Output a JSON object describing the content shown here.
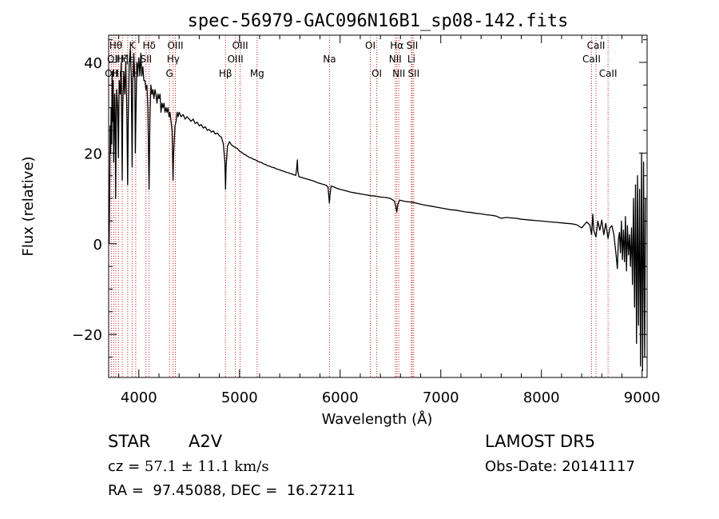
{
  "info": {
    "class_label": "STAR",
    "subclass_label": "A2V",
    "survey": "LAMOST DR5",
    "cz_prefix": "cz = ",
    "cz_value": "57.1 ± 11.1 km/s",
    "obs_date": "Obs-Date: 20141117",
    "coords": "RA =  97.45088, DEC =  16.27211"
  },
  "chart_data": {
    "type": "line",
    "title": "spec-56979-GAC096N16B1_sp08-142.fits",
    "xlabel": "Wavelength (Å)",
    "ylabel": "Flux (relative)",
    "xlim": [
      3700,
      9050
    ],
    "ylim": [
      -29.5,
      46
    ],
    "xticks": [
      4000,
      5000,
      6000,
      7000,
      8000,
      9000
    ],
    "yticks": [
      -20,
      0,
      20,
      40
    ],
    "line_color": "#000000",
    "marker_color": "#cc2222",
    "series": [
      {
        "values": [
          [
            3705,
            0
          ],
          [
            3710,
            12
          ],
          [
            3715,
            26
          ],
          [
            3720,
            20
          ],
          [
            3725,
            30
          ],
          [
            3730,
            22
          ],
          [
            3735,
            38
          ],
          [
            3740,
            27
          ],
          [
            3745,
            36
          ],
          [
            3750,
            18
          ],
          [
            3755,
            24
          ],
          [
            3760,
            33
          ],
          [
            3765,
            28
          ],
          [
            3770,
            10
          ],
          [
            3775,
            25
          ],
          [
            3780,
            34
          ],
          [
            3790,
            30
          ],
          [
            3797,
            19
          ],
          [
            3805,
            36
          ],
          [
            3815,
            33
          ],
          [
            3825,
            40
          ],
          [
            3835,
            14
          ],
          [
            3840,
            30
          ],
          [
            3850,
            38
          ],
          [
            3860,
            33
          ],
          [
            3870,
            40
          ],
          [
            3880,
            30
          ],
          [
            3889,
            13
          ],
          [
            3895,
            28
          ],
          [
            3905,
            40
          ],
          [
            3915,
            43
          ],
          [
            3925,
            37
          ],
          [
            3933,
            17
          ],
          [
            3940,
            36
          ],
          [
            3950,
            42
          ],
          [
            3960,
            36
          ],
          [
            3965,
            20
          ],
          [
            3972,
            30
          ],
          [
            3980,
            40
          ],
          [
            3990,
            38
          ],
          [
            4000,
            41
          ],
          [
            4010,
            37
          ],
          [
            4020,
            42
          ],
          [
            4030,
            37
          ],
          [
            4040,
            39
          ],
          [
            4050,
            36
          ],
          [
            4060,
            36
          ],
          [
            4070,
            34
          ],
          [
            4080,
            35
          ],
          [
            4090,
            30
          ],
          [
            4102,
            12
          ],
          [
            4110,
            28
          ],
          [
            4120,
            35
          ],
          [
            4130,
            33
          ],
          [
            4140,
            34
          ],
          [
            4150,
            32
          ],
          [
            4160,
            34
          ],
          [
            4170,
            33
          ],
          [
            4180,
            31
          ],
          [
            4190,
            33
          ],
          [
            4200,
            32
          ],
          [
            4210,
            33
          ],
          [
            4220,
            29
          ],
          [
            4230,
            31
          ],
          [
            4240,
            30
          ],
          [
            4250,
            31
          ],
          [
            4260,
            29
          ],
          [
            4270,
            30
          ],
          [
            4280,
            29
          ],
          [
            4290,
            30
          ],
          [
            4300,
            28
          ],
          [
            4310,
            29
          ],
          [
            4320,
            27
          ],
          [
            4330,
            25
          ],
          [
            4340,
            14
          ],
          [
            4345,
            20
          ],
          [
            4350,
            22
          ],
          [
            4360,
            26
          ],
          [
            4370,
            27
          ],
          [
            4380,
            29
          ],
          [
            4390,
            28
          ],
          [
            4400,
            29
          ],
          [
            4420,
            28
          ],
          [
            4440,
            28.5
          ],
          [
            4460,
            27.5
          ],
          [
            4480,
            28
          ],
          [
            4500,
            27.5
          ],
          [
            4520,
            27
          ],
          [
            4540,
            27.5
          ],
          [
            4560,
            26.5
          ],
          [
            4580,
            26.8
          ],
          [
            4600,
            26
          ],
          [
            4620,
            26.3
          ],
          [
            4640,
            25.5
          ],
          [
            4660,
            25.8
          ],
          [
            4680,
            25
          ],
          [
            4700,
            25.2
          ],
          [
            4720,
            24.6
          ],
          [
            4740,
            24.9
          ],
          [
            4760,
            24.2
          ],
          [
            4780,
            24.4
          ],
          [
            4800,
            23.8
          ],
          [
            4820,
            23.5
          ],
          [
            4840,
            22
          ],
          [
            4855,
            18
          ],
          [
            4861,
            12
          ],
          [
            4867,
            17
          ],
          [
            4880,
            21.5
          ],
          [
            4900,
            22.5
          ],
          [
            4920,
            21.8
          ],
          [
            4940,
            21.5
          ],
          [
            4960,
            21.2
          ],
          [
            4980,
            21
          ],
          [
            5000,
            20.4
          ],
          [
            5020,
            20.2
          ],
          [
            5040,
            19.8
          ],
          [
            5060,
            19.6
          ],
          [
            5080,
            19.3
          ],
          [
            5100,
            19
          ],
          [
            5120,
            18.9
          ],
          [
            5140,
            18.6
          ],
          [
            5160,
            18.5
          ],
          [
            5180,
            18.2
          ],
          [
            5200,
            18
          ],
          [
            5220,
            17.9
          ],
          [
            5240,
            17.6
          ],
          [
            5260,
            17.5
          ],
          [
            5280,
            17.2
          ],
          [
            5300,
            17.1
          ],
          [
            5320,
            16.9
          ],
          [
            5340,
            16.8
          ],
          [
            5360,
            16.6
          ],
          [
            5380,
            16.4
          ],
          [
            5400,
            16.3
          ],
          [
            5420,
            16.1
          ],
          [
            5440,
            16
          ],
          [
            5460,
            15.8
          ],
          [
            5480,
            15.7
          ],
          [
            5500,
            15.5
          ],
          [
            5520,
            15.4
          ],
          [
            5540,
            15.2
          ],
          [
            5560,
            15.1
          ],
          [
            5570,
            17
          ],
          [
            5575,
            18.5
          ],
          [
            5580,
            16
          ],
          [
            5590,
            14.8
          ],
          [
            5620,
            14.6
          ],
          [
            5650,
            14.4
          ],
          [
            5680,
            14.2
          ],
          [
            5710,
            14
          ],
          [
            5740,
            13.8
          ],
          [
            5770,
            13.5
          ],
          [
            5800,
            13.3
          ],
          [
            5830,
            13.1
          ],
          [
            5860,
            12.9
          ],
          [
            5880,
            12.5
          ],
          [
            5893,
            9
          ],
          [
            5900,
            11
          ],
          [
            5910,
            12.7
          ],
          [
            5940,
            12.5
          ],
          [
            5970,
            12.2
          ],
          [
            6000,
            12
          ],
          [
            6050,
            11.7
          ],
          [
            6100,
            11.4
          ],
          [
            6150,
            11.2
          ],
          [
            6200,
            11
          ],
          [
            6250,
            10.8
          ],
          [
            6300,
            10.6
          ],
          [
            6350,
            10.5
          ],
          [
            6400,
            10.3
          ],
          [
            6450,
            10.2
          ],
          [
            6500,
            10
          ],
          [
            6540,
            9.4
          ],
          [
            6555,
            8
          ],
          [
            6563,
            7
          ],
          [
            6572,
            8.6
          ],
          [
            6590,
            9.6
          ],
          [
            6650,
            9.3
          ],
          [
            6700,
            9.2
          ],
          [
            6750,
            9
          ],
          [
            6800,
            8.7
          ],
          [
            6850,
            8.5
          ],
          [
            6900,
            8.3
          ],
          [
            6950,
            8.1
          ],
          [
            7000,
            7.9
          ],
          [
            7050,
            7.7
          ],
          [
            7100,
            7.5
          ],
          [
            7150,
            7.4
          ],
          [
            7200,
            7.2
          ],
          [
            7250,
            7
          ],
          [
            7300,
            6.9
          ],
          [
            7350,
            6.7
          ],
          [
            7400,
            6.6
          ],
          [
            7450,
            6.4
          ],
          [
            7500,
            6.3
          ],
          [
            7550,
            6.1
          ],
          [
            7600,
            5.6
          ],
          [
            7650,
            5.8
          ],
          [
            7700,
            5.7
          ],
          [
            7750,
            5.6
          ],
          [
            7800,
            5.4
          ],
          [
            7850,
            5.3
          ],
          [
            7900,
            5.2
          ],
          [
            7950,
            5.1
          ],
          [
            8000,
            5
          ],
          [
            8050,
            4.9
          ],
          [
            8100,
            4.8
          ],
          [
            8150,
            4.7
          ],
          [
            8200,
            4.6
          ],
          [
            8250,
            4.5
          ],
          [
            8300,
            4.4
          ],
          [
            8350,
            4.2
          ],
          [
            8400,
            3.5
          ],
          [
            8450,
            4.8
          ],
          [
            8480,
            4.2
          ],
          [
            8498,
            2
          ],
          [
            8510,
            6.5
          ],
          [
            8520,
            3
          ],
          [
            8542,
            1.5
          ],
          [
            8560,
            5
          ],
          [
            8580,
            3
          ],
          [
            8600,
            5.2
          ],
          [
            8620,
            2
          ],
          [
            8640,
            4.5
          ],
          [
            8662,
            1.2
          ],
          [
            8680,
            3.5
          ],
          [
            8700,
            4
          ],
          [
            8720,
            2
          ],
          [
            8740,
            -2
          ],
          [
            8755,
            -5.5
          ],
          [
            8765,
            1
          ],
          [
            8775,
            2.5
          ],
          [
            8785,
            -2
          ],
          [
            8795,
            5
          ],
          [
            8805,
            -3.5
          ],
          [
            8815,
            3
          ],
          [
            8825,
            -4
          ],
          [
            8835,
            6
          ],
          [
            8845,
            -6
          ],
          [
            8855,
            4
          ],
          [
            8865,
            -2.5
          ],
          [
            8875,
            2
          ],
          [
            8885,
            -5
          ],
          [
            8895,
            3.5
          ],
          [
            8905,
            -9
          ],
          [
            8915,
            10
          ],
          [
            8925,
            -14
          ],
          [
            8935,
            13
          ],
          [
            8945,
            -22
          ],
          [
            8955,
            15
          ],
          [
            8965,
            -18
          ],
          [
            8975,
            12
          ],
          [
            8985,
            -27
          ],
          [
            8995,
            20
          ],
          [
            9005,
            -28
          ],
          [
            9015,
            18
          ],
          [
            9025,
            -25
          ],
          [
            9035,
            10
          ]
        ]
      }
    ],
    "lines": [
      {
        "wave": 3727,
        "label": "OII",
        "row": 3
      },
      {
        "wave": 3750,
        "label": "OII",
        "row": 2
      },
      {
        "wave": 3771,
        "label": "Hθ",
        "row": 1
      },
      {
        "wave": 3798,
        "label": "Hη",
        "row": 3
      },
      {
        "wave": 3835,
        "label": "Hζ",
        "row": 2
      },
      {
        "wave": 3889,
        "label": "Hε",
        "row": 2
      },
      {
        "wave": 3934,
        "label": "K",
        "row": 1
      },
      {
        "wave": 3969,
        "label": "H",
        "row": 3
      },
      {
        "wave": 4072,
        "label": "SII",
        "row": 2
      },
      {
        "wave": 4102,
        "label": "Hδ",
        "row": 1
      },
      {
        "wave": 4305,
        "label": "G",
        "row": 3
      },
      {
        "wave": 4341,
        "label": "Hγ",
        "row": 2
      },
      {
        "wave": 4363,
        "label": "OIII",
        "row": 1
      },
      {
        "wave": 4861,
        "label": "Hβ",
        "row": 3
      },
      {
        "wave": 4959,
        "label": "OIII",
        "row": 2
      },
      {
        "wave": 5007,
        "label": "OIII",
        "row": 1
      },
      {
        "wave": 5175,
        "label": "Mg",
        "row": 3
      },
      {
        "wave": 5894,
        "label": "Na",
        "row": 2
      },
      {
        "wave": 6300,
        "label": "OI",
        "row": 1
      },
      {
        "wave": 6364,
        "label": "OI",
        "row": 3
      },
      {
        "wave": 6548,
        "label": "NII",
        "row": 2
      },
      {
        "wave": 6563,
        "label": "Hα",
        "row": 1
      },
      {
        "wave": 6583,
        "label": "NII",
        "row": 3
      },
      {
        "wave": 6708,
        "label": "Li",
        "row": 2
      },
      {
        "wave": 6716,
        "label": "SII",
        "row": 1
      },
      {
        "wave": 6731,
        "label": "SII",
        "row": 3
      },
      {
        "wave": 8498,
        "label": "CaII",
        "row": 2
      },
      {
        "wave": 8542,
        "label": "CaII",
        "row": 1
      },
      {
        "wave": 8662,
        "label": "CaII",
        "row": 3
      }
    ]
  }
}
